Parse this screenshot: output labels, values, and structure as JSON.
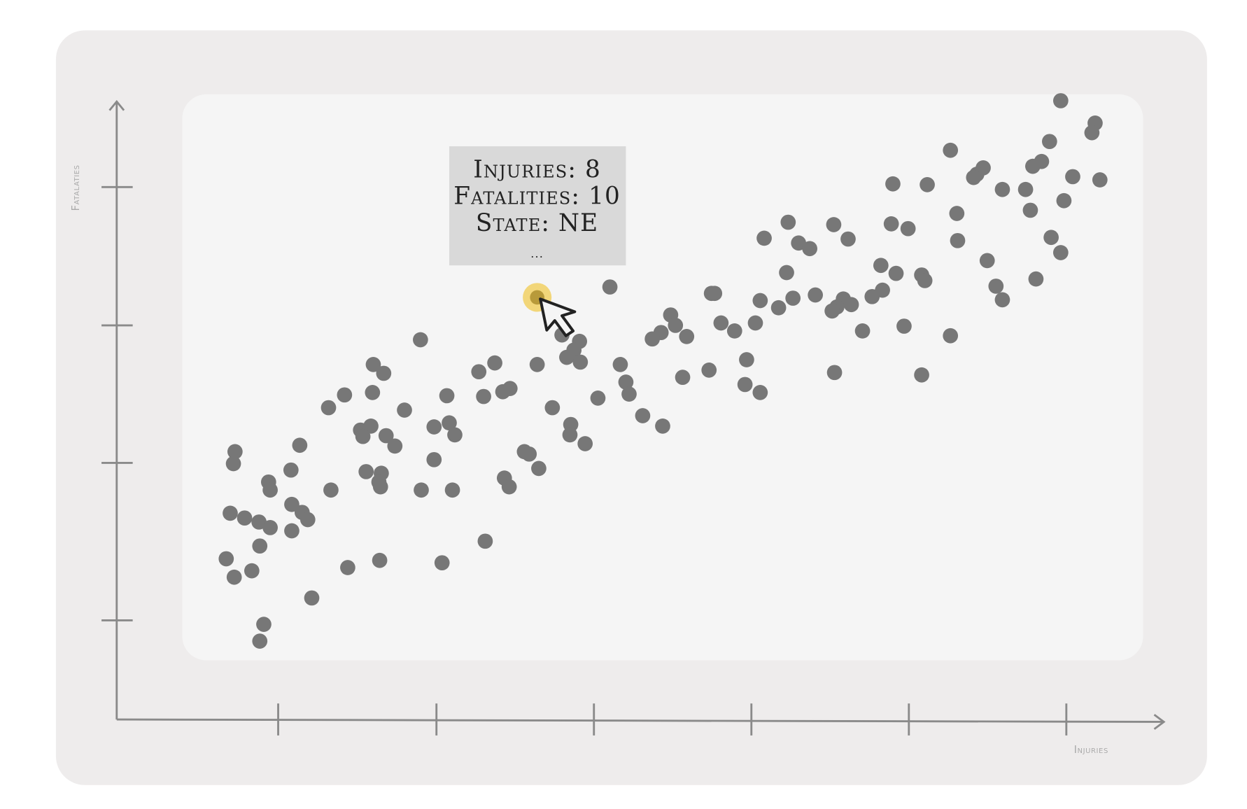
{
  "axes": {
    "y_label": "Fatalaties",
    "x_label": "Injuries"
  },
  "tooltip": {
    "lines": [
      "Injuries: 8",
      "Fatalities: 10",
      "State: NE",
      "..."
    ]
  }
}
